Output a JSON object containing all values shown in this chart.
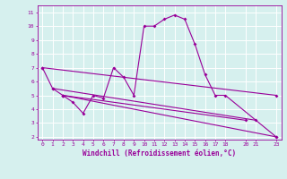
{
  "xlabel": "Windchill (Refroidissement éolien,°C)",
  "bg_color": "#d6f0ee",
  "line_color": "#990099",
  "grid_color": "#ffffff",
  "ylim": [
    1.8,
    11.5
  ],
  "xlim": [
    -0.5,
    23.5
  ],
  "yticks": [
    2,
    3,
    4,
    5,
    6,
    7,
    8,
    9,
    10,
    11
  ],
  "xticks": [
    0,
    1,
    2,
    3,
    4,
    5,
    6,
    7,
    8,
    9,
    10,
    11,
    12,
    13,
    14,
    15,
    16,
    17,
    18,
    20,
    21,
    23
  ],
  "series": [
    {
      "x": [
        0,
        1,
        2,
        3,
        4,
        5,
        6,
        7,
        8,
        9,
        10,
        11,
        12,
        13,
        14,
        15,
        16,
        17,
        18,
        23
      ],
      "y": [
        7.0,
        5.5,
        5.0,
        4.5,
        3.7,
        5.0,
        4.8,
        7.0,
        6.3,
        5.0,
        10.0,
        10.0,
        10.5,
        10.8,
        10.5,
        8.7,
        6.5,
        5.0,
        5.0,
        2.0
      ]
    },
    {
      "x": [
        0,
        23
      ],
      "y": [
        7.0,
        5.0
      ]
    },
    {
      "x": [
        1,
        21
      ],
      "y": [
        5.5,
        3.2
      ]
    },
    {
      "x": [
        2,
        20
      ],
      "y": [
        5.0,
        3.2
      ]
    },
    {
      "x": [
        2,
        23
      ],
      "y": [
        5.0,
        2.0
      ]
    }
  ]
}
